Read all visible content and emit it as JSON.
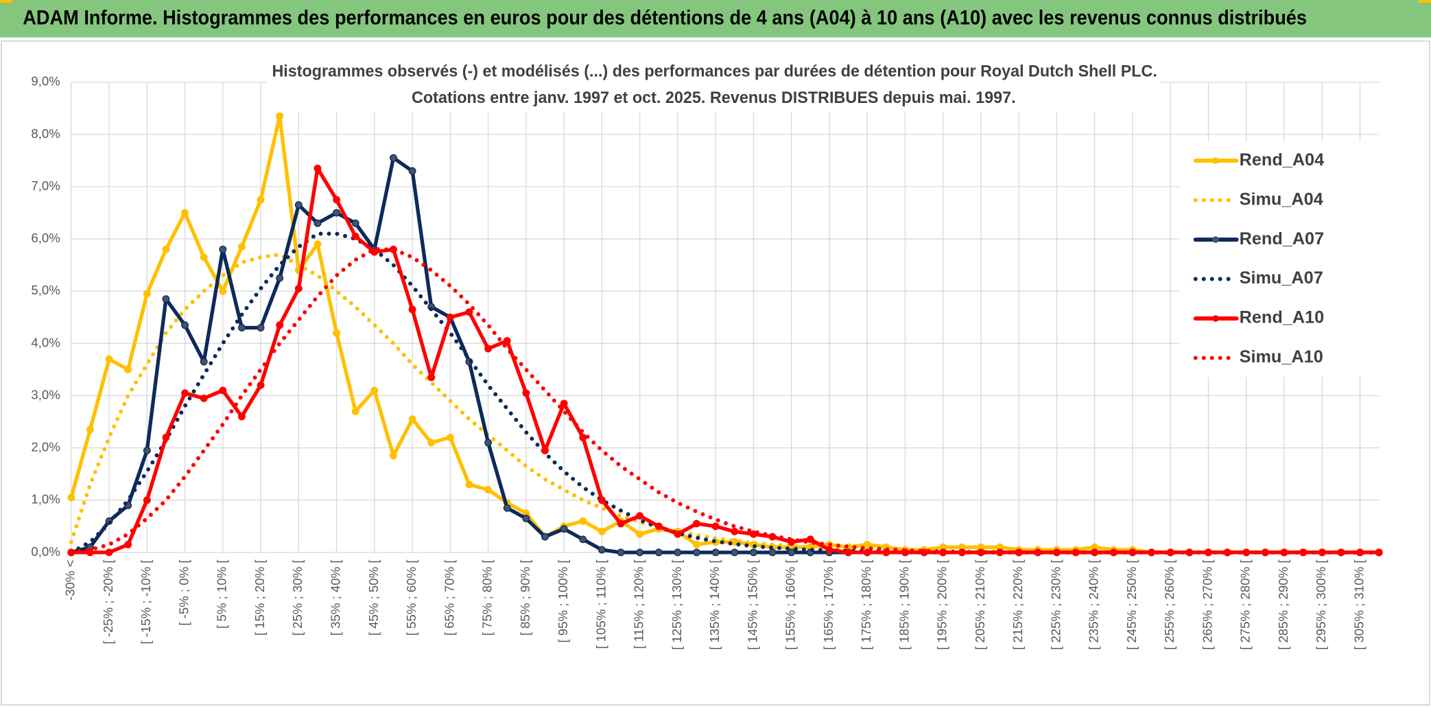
{
  "chart_data": {
    "type": "line",
    "title": "ADAM Informe. Histogrammes des performances en euros pour des détentions de 4 ans (A04) à 10 ans (A10) avec les revenus connus distribués",
    "subtitle": [
      "Histogrammes observés (-) et modélisés (...) des performances par durées de détention pour Royal Dutch Shell PLC.",
      "Cotations entre janv. 1997 et oct. 2025. Revenus DISTRIBUES depuis mai. 1997."
    ],
    "categories": [
      "-30% <",
      null,
      "[ -25% ; -20% [",
      null,
      "[ -15% ; -10% [",
      null,
      "[ -5% ; 0% [",
      null,
      "[ 5% ; 10% [",
      null,
      "[ 15% ; 20% [",
      null,
      "[ 25% ; 30% [",
      null,
      "[ 35% ; 40% [",
      null,
      "[ 45% ; 50% [",
      null,
      "[ 55% ; 60% [",
      null,
      "[ 65% ; 70% [",
      null,
      "[ 75% ; 80% [",
      null,
      "[ 85% ; 90% [",
      null,
      "[ 95% ; 100% [",
      null,
      "[ 105% ; 110% [",
      null,
      "[ 115% ; 120% [",
      null,
      "[ 125% ; 130% [",
      null,
      "[ 135% ; 140% [",
      null,
      "[ 145% ; 150% [",
      null,
      "[ 155% ; 160% [",
      null,
      "[ 165% ; 170% [",
      null,
      "[ 175% ; 180% [",
      null,
      "[ 185% ; 190% [",
      null,
      "[ 195% ; 200% [",
      null,
      "[ 205% ; 210% [",
      null,
      "[ 215% ; 220% [",
      null,
      "[ 225% ; 230% [",
      null,
      "[ 235% ; 240% [",
      null,
      "[ 245% ; 250% [",
      null,
      "[ 255% ; 260% [",
      null,
      "[ 265% ; 270% [",
      null,
      "[ 275% ; 280% [",
      null,
      "[ 285% ; 290% [",
      null,
      "[ 295% ; 300% [",
      null,
      "[ 305% ; 310% [",
      null
    ],
    "series": [
      {
        "name": "Rend_A04",
        "color": "#FFC000",
        "style": "solid",
        "markers": true,
        "values": [
          1.05,
          2.35,
          3.7,
          3.5,
          4.95,
          5.8,
          6.5,
          5.65,
          5.0,
          5.85,
          6.75,
          8.35,
          5.4,
          5.9,
          4.2,
          2.7,
          3.1,
          1.85,
          2.55,
          2.1,
          2.2,
          1.3,
          1.2,
          0.95,
          0.75,
          0.3,
          0.5,
          0.6,
          0.4,
          0.6,
          0.35,
          0.45,
          0.4,
          0.15,
          0.2,
          0.2,
          0.15,
          0.1,
          0.1,
          0.1,
          0.15,
          0.1,
          0.15,
          0.1,
          0.05,
          0.05,
          0.1,
          0.1,
          0.1,
          0.1,
          0.05,
          0.05,
          0.05,
          0.05,
          0.1,
          0.05,
          0.05,
          0,
          0,
          0,
          0,
          0,
          0,
          0,
          0,
          0,
          0,
          0,
          0,
          0
        ]
      },
      {
        "name": "Simu_A04",
        "color": "#FFC000",
        "style": "dotted",
        "markers": false,
        "values": [
          0.2,
          1.3,
          2.2,
          3.0,
          3.6,
          4.2,
          4.65,
          5.0,
          5.3,
          5.55,
          5.65,
          5.7,
          5.5,
          5.3,
          5.0,
          4.7,
          4.35,
          4.0,
          3.6,
          3.25,
          2.9,
          2.55,
          2.25,
          1.95,
          1.65,
          1.4,
          1.2,
          1.0,
          0.85,
          0.7,
          0.58,
          0.48,
          0.4,
          0.33,
          0.27,
          0.22,
          0.18,
          0.15,
          0.12,
          0.1,
          0.08,
          0.07,
          0.06,
          0.05,
          0.04,
          0.03,
          0.03,
          0.02,
          0.02,
          0.02,
          0.01,
          0.01,
          0.01,
          0.01,
          0.01,
          0.01,
          0.01,
          0,
          0,
          0,
          0,
          0,
          0,
          0,
          0,
          0,
          0,
          0,
          0,
          0
        ]
      },
      {
        "name": "Rend_A07",
        "color": "#0E2A5C",
        "style": "solid",
        "markers": true,
        "values": [
          0,
          0.1,
          0.6,
          0.9,
          1.95,
          4.85,
          4.35,
          3.65,
          5.8,
          4.3,
          4.3,
          5.25,
          6.65,
          6.3,
          6.5,
          6.3,
          5.8,
          7.55,
          7.3,
          4.7,
          4.5,
          3.65,
          2.1,
          0.85,
          0.65,
          0.3,
          0.45,
          0.25,
          0.05,
          0,
          0,
          0,
          0,
          0,
          0,
          0,
          0,
          0,
          0,
          0,
          0,
          0,
          0,
          0,
          0,
          0,
          0,
          0,
          0,
          0,
          0,
          0,
          0,
          0,
          0,
          0,
          0,
          0,
          0,
          0,
          0,
          0,
          0,
          0,
          0,
          0,
          0,
          0,
          0,
          0
        ]
      },
      {
        "name": "Simu_A07",
        "color": "#0E2A5C",
        "style": "dotted",
        "markers": false,
        "values": [
          0,
          0.2,
          0.55,
          1.0,
          1.55,
          2.15,
          2.8,
          3.4,
          4.0,
          4.55,
          5.05,
          5.5,
          5.85,
          6.1,
          6.1,
          6.0,
          5.8,
          5.5,
          5.1,
          4.65,
          4.2,
          3.7,
          3.2,
          2.75,
          2.3,
          1.9,
          1.55,
          1.25,
          1.0,
          0.8,
          0.62,
          0.48,
          0.37,
          0.28,
          0.21,
          0.16,
          0.12,
          0.09,
          0.07,
          0.05,
          0.04,
          0.03,
          0.02,
          0.01,
          0,
          0,
          0,
          0,
          0,
          0,
          0,
          0,
          0,
          0,
          0,
          0,
          0,
          0,
          0,
          0,
          0,
          0,
          0,
          0,
          0,
          0,
          0,
          0,
          0,
          0
        ]
      },
      {
        "name": "Rend_A10",
        "color": "#FF0000",
        "style": "solid",
        "markers": true,
        "values": [
          0,
          0,
          0,
          0.15,
          1.0,
          2.2,
          3.05,
          2.95,
          3.1,
          2.6,
          3.2,
          4.35,
          5.05,
          7.35,
          6.75,
          6.05,
          5.75,
          5.8,
          4.65,
          3.35,
          4.5,
          4.6,
          3.9,
          4.05,
          3.05,
          1.95,
          2.85,
          2.2,
          1.0,
          0.55,
          0.7,
          0.5,
          0.35,
          0.55,
          0.5,
          0.4,
          0.35,
          0.3,
          0.2,
          0.25,
          0.05,
          0,
          0,
          0,
          0,
          0,
          0,
          0,
          0,
          0,
          0,
          0,
          0,
          0,
          0,
          0,
          0,
          0,
          0,
          0,
          0,
          0,
          0,
          0,
          0,
          0,
          0,
          0,
          0,
          0
        ]
      },
      {
        "name": "Simu_A10",
        "color": "#FF0000",
        "style": "dotted",
        "markers": false,
        "values": [
          0,
          0.05,
          0.15,
          0.35,
          0.65,
          1.0,
          1.45,
          1.95,
          2.45,
          3.0,
          3.5,
          4.0,
          4.45,
          4.9,
          5.3,
          5.6,
          5.8,
          5.8,
          5.65,
          5.4,
          5.1,
          4.75,
          4.35,
          3.9,
          3.5,
          3.1,
          2.7,
          2.3,
          1.95,
          1.65,
          1.4,
          1.15,
          0.95,
          0.78,
          0.63,
          0.5,
          0.4,
          0.32,
          0.25,
          0.19,
          0.15,
          0.11,
          0.08,
          0.06,
          0.04,
          0.03,
          0.02,
          0.01,
          0,
          0,
          0,
          0,
          0,
          0,
          0,
          0,
          0,
          0,
          0,
          0,
          0,
          0,
          0,
          0,
          0,
          0,
          0,
          0,
          0,
          0
        ]
      }
    ],
    "ylim": [
      0,
      9
    ],
    "yticks": [
      {
        "value": 0,
        "label": "0,0%"
      },
      {
        "value": 1,
        "label": "1,0%"
      },
      {
        "value": 2,
        "label": "2,0%"
      },
      {
        "value": 3,
        "label": "3,0%"
      },
      {
        "value": 4,
        "label": "4,0%"
      },
      {
        "value": 5,
        "label": "5,0%"
      },
      {
        "value": 6,
        "label": "6,0%"
      },
      {
        "value": 7,
        "label": "7,0%"
      },
      {
        "value": 8,
        "label": "8,0%"
      },
      {
        "value": 9,
        "label": "9,0%"
      }
    ],
    "grid": true,
    "legend": "right"
  }
}
